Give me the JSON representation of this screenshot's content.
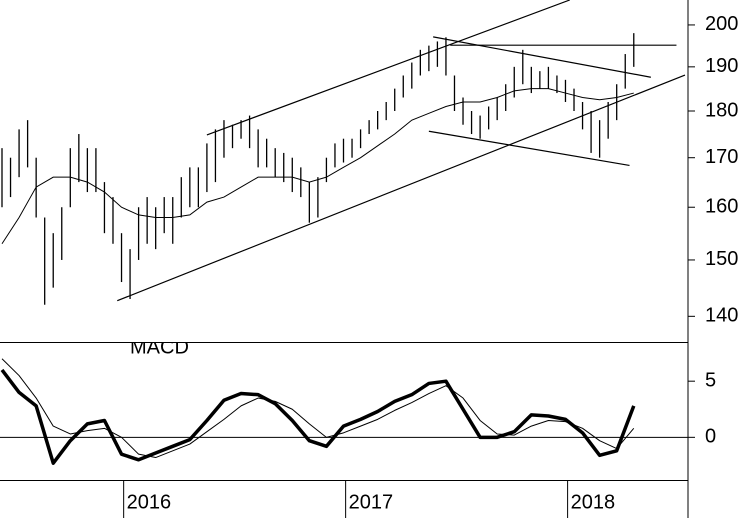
{
  "chart_data": [
    {
      "type": "hilo",
      "log_scale": true,
      "xlim": [
        0,
        160
      ],
      "ylim": [
        136,
        206.2
      ],
      "yticks": [
        140,
        150,
        160,
        170,
        180,
        190,
        200
      ],
      "color": "#000000",
      "x": [
        0,
        2,
        4,
        6,
        8,
        10,
        12,
        14,
        16,
        18,
        20,
        22,
        24,
        26,
        28,
        30,
        32,
        34,
        36,
        38,
        40,
        42,
        44,
        46,
        48,
        50,
        52,
        54,
        56,
        58,
        60,
        62,
        64,
        66,
        68,
        70,
        72,
        74,
        76,
        78,
        80,
        82,
        84,
        86,
        88,
        90,
        92,
        94,
        96,
        98,
        100,
        102,
        104,
        106,
        108,
        110,
        112,
        114,
        116,
        118,
        120,
        122,
        124,
        126,
        128,
        130,
        132,
        134,
        136,
        138,
        140,
        142,
        144,
        146,
        148
      ],
      "high": [
        172,
        170,
        176,
        178,
        170,
        158,
        155,
        160,
        172,
        175,
        172,
        172,
        165,
        162,
        155,
        152,
        160,
        162,
        160,
        162,
        162,
        166,
        168,
        168,
        173,
        176,
        178,
        177,
        178,
        179,
        176,
        174,
        172,
        171,
        170,
        168,
        165,
        166,
        170,
        173,
        174,
        174,
        176,
        178,
        180,
        182,
        185,
        188,
        191,
        194,
        195,
        196,
        197,
        188,
        183,
        180,
        179,
        181,
        183,
        186,
        190,
        194,
        190,
        189,
        190,
        188,
        187,
        185,
        182,
        180,
        178,
        182,
        186,
        193,
        198
      ],
      "low": [
        160,
        162,
        166,
        168,
        158,
        142,
        145,
        150,
        160,
        165,
        163,
        163,
        155,
        153,
        146,
        143,
        150,
        153,
        152,
        155,
        153,
        158,
        160,
        160,
        163,
        165,
        170,
        172,
        174,
        172,
        168,
        168,
        166,
        165,
        163,
        162,
        157,
        158,
        165,
        168,
        169,
        170,
        172,
        175,
        176,
        178,
        180,
        183,
        185,
        188,
        189,
        190,
        188,
        180,
        177,
        175,
        174,
        176,
        178,
        180,
        183,
        186,
        184,
        185,
        185,
        184,
        182,
        180,
        176,
        171,
        170,
        174,
        178,
        185,
        190
      ],
      "ma": {
        "x": [
          0,
          4,
          8,
          12,
          16,
          20,
          24,
          28,
          32,
          36,
          40,
          44,
          48,
          52,
          56,
          60,
          64,
          68,
          72,
          76,
          80,
          84,
          88,
          92,
          96,
          100,
          104,
          108,
          112,
          116,
          120,
          124,
          128,
          132,
          136,
          140,
          144,
          148
        ],
        "values": [
          153,
          158,
          164,
          166,
          166,
          165,
          163,
          160,
          158.5,
          158,
          158,
          158.5,
          161,
          162,
          164,
          166,
          166,
          166,
          165,
          166,
          168,
          170,
          172.5,
          175,
          178,
          179.5,
          181,
          182,
          182,
          183,
          184.5,
          185,
          185,
          184,
          183,
          182.5,
          183,
          184
        ]
      },
      "trendlines": [
        {
          "x": [
            48,
            133
          ],
          "y": [
            174.8,
            206.2
          ]
        },
        {
          "x": [
            27,
            160
          ],
          "y": [
            142.7,
            188.1
          ]
        },
        {
          "x": [
            101,
            152
          ],
          "y": [
            197.1,
            187.6
          ]
        },
        {
          "x": [
            105,
            158
          ],
          "y": [
            195.1,
            195.1
          ]
        },
        {
          "x": [
            100,
            147
          ],
          "y": [
            175.6,
            168.4
          ]
        }
      ]
    },
    {
      "type": "line",
      "title": "MACD",
      "xlim": [
        0,
        160
      ],
      "ylim": [
        -3.8,
        8.4
      ],
      "yticks": [
        0,
        5
      ],
      "xticks": [
        {
          "value": 28.5,
          "label": "2016"
        },
        {
          "value": 80.5,
          "label": "2017"
        },
        {
          "value": 132.5,
          "label": "2018"
        }
      ],
      "x": [
        0,
        4,
        8,
        12,
        16,
        20,
        24,
        28,
        32,
        36,
        40,
        44,
        48,
        52,
        56,
        60,
        64,
        68,
        72,
        76,
        80,
        84,
        88,
        92,
        96,
        100,
        104,
        108,
        112,
        116,
        120,
        124,
        128,
        132,
        136,
        140,
        144,
        148
      ],
      "series": [
        {
          "color": "#000000",
          "width": 3.5,
          "values": [
            6,
            4,
            2.8,
            -2.3,
            -0.3,
            1.2,
            1.5,
            -1.5,
            -2,
            -1.4,
            -0.8,
            -0.2,
            1.5,
            3.3,
            3.9,
            3.8,
            3,
            1.5,
            -0.3,
            -0.8,
            1,
            1.6,
            2.3,
            3.2,
            3.8,
            4.8,
            5,
            2.5,
            0,
            0,
            0.5,
            2,
            1.9,
            1.6,
            0.4,
            -1.6,
            -1.2,
            2.8
          ]
        },
        {
          "color": "#000000",
          "width": 1,
          "values": [
            7,
            5.5,
            3.5,
            1,
            0.3,
            0.6,
            0.8,
            0,
            -1.5,
            -1.8,
            -1.2,
            -0.6,
            0.5,
            1.6,
            2.8,
            3.5,
            3.2,
            2.5,
            1.2,
            0,
            0.4,
            1,
            1.6,
            2.4,
            3.1,
            3.9,
            4.6,
            3.5,
            1.5,
            0.3,
            0.2,
            1,
            1.5,
            1.4,
            0.8,
            -0.3,
            -1,
            0.8
          ]
        }
      ]
    }
  ]
}
